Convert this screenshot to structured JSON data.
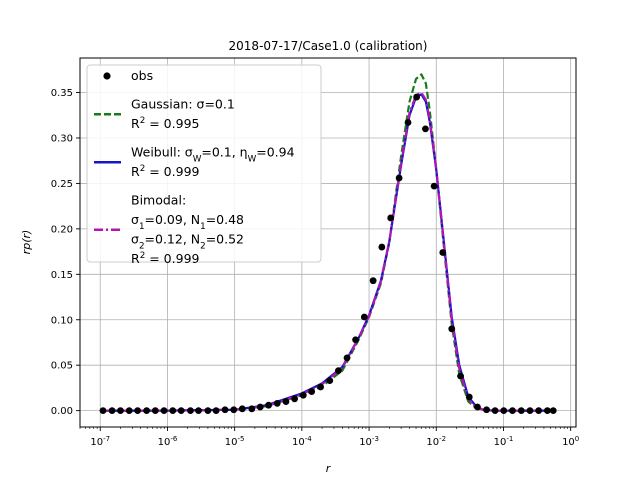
{
  "chart_data": {
    "type": "line",
    "title": "2018-07-17/Case1.0 (calibration)",
    "xlabel": "r",
    "ylabel": "rp(r)",
    "xscale": "log",
    "xlim": [
      5e-08,
      1.2
    ],
    "ylim": [
      -0.018,
      0.388
    ],
    "grid": true,
    "legend_position": "upper-left",
    "x_ticks": [
      {
        "value": 1e-07,
        "label": "10^-7"
      },
      {
        "value": 1e-06,
        "label": "10^-6"
      },
      {
        "value": 1e-05,
        "label": "10^-5"
      },
      {
        "value": 0.0001,
        "label": "10^-4"
      },
      {
        "value": 0.001,
        "label": "10^-3"
      },
      {
        "value": 0.01,
        "label": "10^-2"
      },
      {
        "value": 0.1,
        "label": "10^-1"
      },
      {
        "value": 1,
        "label": "10^0"
      }
    ],
    "y_ticks": [
      0.0,
      0.05,
      0.1,
      0.15,
      0.2,
      0.25,
      0.3,
      0.35
    ],
    "y_tick_labels": [
      "0.00",
      "0.05",
      "0.10",
      "0.15",
      "0.20",
      "0.25",
      "0.30",
      "0.35"
    ],
    "observations": {
      "name": "obs",
      "color": "#000000",
      "x": [
        1.1e-07,
        1.5e-07,
        2e-07,
        2.7e-07,
        3.6e-07,
        4.9e-07,
        6.6e-07,
        8.9e-07,
        1.2e-06,
        1.6e-06,
        2.2e-06,
        2.9e-06,
        4e-06,
        5.3e-06,
        7.2e-06,
        9.7e-06,
        1.3e-05,
        1.8e-05,
        2.4e-05,
        3.2e-05,
        4.3e-05,
        5.8e-05,
        7.8e-05,
        0.000105,
        0.00014,
        0.00019,
        0.00026,
        0.00035,
        0.00047,
        0.00063,
        0.00085,
        0.00115,
        0.00155,
        0.0021,
        0.0028,
        0.0038,
        0.0051,
        0.0069,
        0.0093,
        0.0125,
        0.017,
        0.023,
        0.031,
        0.041,
        0.056,
        0.075,
        0.101,
        0.136,
        0.184,
        0.248,
        0.334,
        0.45,
        0.55
      ],
      "y": [
        0.0,
        0.0,
        0.0,
        0.0,
        0.0,
        0.0,
        0.0,
        0.0,
        0.0,
        0.0,
        0.0,
        0.0,
        0.0,
        0.0,
        0.001,
        0.001,
        0.002,
        0.002,
        0.004,
        0.006,
        0.008,
        0.01,
        0.013,
        0.017,
        0.021,
        0.026,
        0.033,
        0.044,
        0.058,
        0.078,
        0.103,
        0.143,
        0.18,
        0.212,
        0.256,
        0.317,
        0.345,
        0.31,
        0.247,
        0.174,
        0.09,
        0.038,
        0.015,
        0.004,
        0.001,
        0.0,
        0.0,
        0.0,
        0.0,
        0.0,
        0.0,
        0.0,
        0.0
      ]
    },
    "series": [
      {
        "name": "Gaussian",
        "color": "#1a7a1a",
        "dash": "dashed",
        "x": [
          1e-07,
          1e-06,
          1e-05,
          3e-05,
          0.0001,
          0.0002,
          0.0004,
          0.0007,
          0.001,
          0.0015,
          0.002,
          0.003,
          0.004,
          0.005,
          0.006,
          0.007,
          0.008,
          0.01,
          0.013,
          0.017,
          0.022,
          0.03,
          0.04,
          0.05,
          0.07,
          0.1,
          0.2,
          0.55
        ],
        "y": [
          0.0,
          0.0,
          0.001,
          0.005,
          0.017,
          0.027,
          0.044,
          0.078,
          0.103,
          0.14,
          0.185,
          0.28,
          0.34,
          0.365,
          0.37,
          0.36,
          0.33,
          0.265,
          0.18,
          0.095,
          0.04,
          0.01,
          0.002,
          0.001,
          0.0,
          0.0,
          0.0,
          0.0
        ]
      },
      {
        "name": "Weibull",
        "color": "#1414c8",
        "dash": "solid",
        "x": [
          1e-07,
          1e-06,
          1e-05,
          3e-05,
          0.0001,
          0.0002,
          0.0004,
          0.0007,
          0.001,
          0.0015,
          0.002,
          0.003,
          0.004,
          0.005,
          0.006,
          0.007,
          0.008,
          0.01,
          0.013,
          0.017,
          0.022,
          0.03,
          0.04,
          0.05,
          0.07,
          0.1,
          0.2,
          0.55
        ],
        "y": [
          0.0,
          0.0,
          0.001,
          0.006,
          0.019,
          0.03,
          0.048,
          0.08,
          0.105,
          0.143,
          0.186,
          0.27,
          0.325,
          0.345,
          0.348,
          0.34,
          0.318,
          0.265,
          0.185,
          0.103,
          0.05,
          0.015,
          0.004,
          0.001,
          0.0,
          0.0,
          0.0,
          0.0
        ]
      },
      {
        "name": "Bimodal",
        "color": "#b414b4",
        "dash": "dashdot",
        "x": [
          1e-07,
          1e-06,
          1e-05,
          3e-05,
          0.0001,
          0.0002,
          0.0004,
          0.0007,
          0.001,
          0.0015,
          0.002,
          0.003,
          0.004,
          0.005,
          0.006,
          0.007,
          0.008,
          0.01,
          0.013,
          0.017,
          0.022,
          0.03,
          0.04,
          0.05,
          0.07,
          0.1,
          0.2,
          0.55
        ],
        "y": [
          0.0,
          0.0,
          0.001,
          0.005,
          0.018,
          0.029,
          0.047,
          0.08,
          0.104,
          0.142,
          0.186,
          0.272,
          0.328,
          0.347,
          0.35,
          0.342,
          0.32,
          0.266,
          0.184,
          0.1,
          0.046,
          0.013,
          0.003,
          0.001,
          0.0,
          0.0,
          0.0,
          0.0
        ]
      }
    ],
    "legend": [
      {
        "kind": "marker",
        "color": "#000000",
        "lines": [
          "obs"
        ]
      },
      {
        "kind": "line",
        "color": "#1a7a1a",
        "dash": "dashed",
        "lines": [
          "Gaussian: σ=0.1",
          "R^2 = 0.995"
        ]
      },
      {
        "kind": "line",
        "color": "#1414c8",
        "dash": "solid",
        "lines": [
          "Weibull: σ_W=0.1, η_W=0.94",
          "R^2 = 0.999"
        ]
      },
      {
        "kind": "line",
        "color": "#b414b4",
        "dash": "dashdot",
        "lines": [
          "Bimodal:",
          "σ_1=0.09, N_1=0.48",
          "σ_2=0.12, N_2=0.52",
          "R^2 = 0.999"
        ]
      }
    ]
  }
}
